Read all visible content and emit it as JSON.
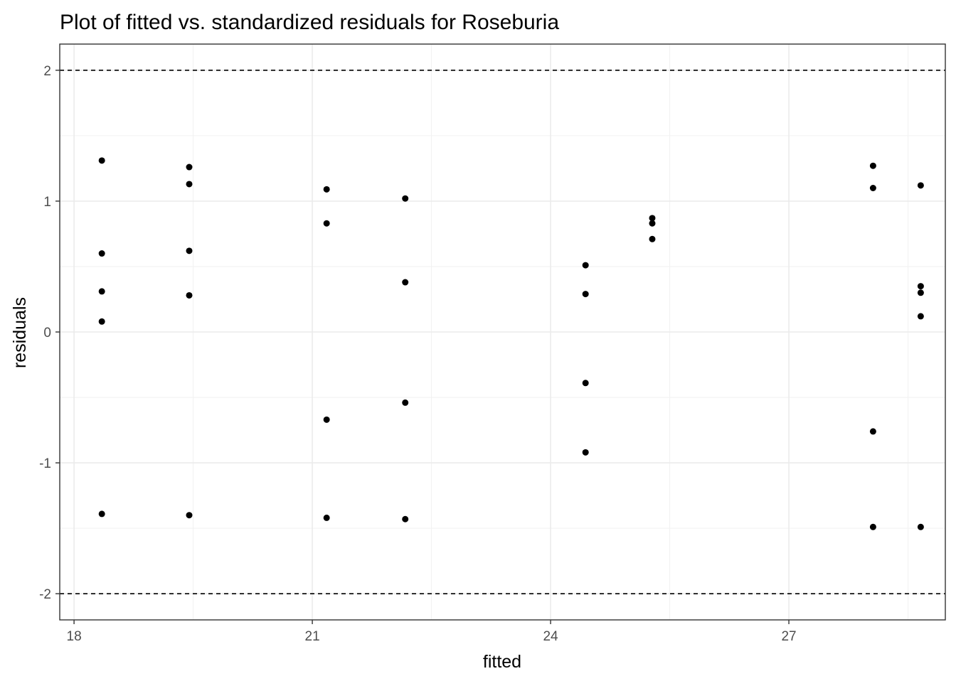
{
  "chart_data": {
    "type": "scatter",
    "title": "Plot of fitted vs. standardized residuals for Roseburia",
    "xlabel": "fitted",
    "ylabel": "residuals",
    "xlim": [
      17.82,
      28.97
    ],
    "ylim": [
      -2.2,
      2.2
    ],
    "x_ticks": [
      18,
      21,
      24,
      27
    ],
    "x_tick_labels": [
      "18",
      "21",
      "24",
      "27"
    ],
    "y_ticks": [
      -2,
      -1,
      0,
      1,
      2
    ],
    "y_tick_labels": [
      "-2",
      "-1",
      "0",
      "1",
      "2"
    ],
    "reference_lines_y": [
      -2,
      2
    ],
    "reference_line_style": "dashed",
    "grid": true,
    "theme": "black-and-white",
    "point_color": "#000000",
    "points": [
      {
        "x": 18.35,
        "y": 1.31
      },
      {
        "x": 18.35,
        "y": 0.6
      },
      {
        "x": 18.35,
        "y": 0.31
      },
      {
        "x": 18.35,
        "y": 0.08
      },
      {
        "x": 18.35,
        "y": -1.39
      },
      {
        "x": 19.45,
        "y": 1.26
      },
      {
        "x": 19.45,
        "y": 1.13
      },
      {
        "x": 19.45,
        "y": 0.62
      },
      {
        "x": 19.45,
        "y": 0.28
      },
      {
        "x": 19.45,
        "y": -1.4
      },
      {
        "x": 21.18,
        "y": 1.09
      },
      {
        "x": 21.18,
        "y": 0.83
      },
      {
        "x": 21.18,
        "y": -0.67
      },
      {
        "x": 21.18,
        "y": -1.42
      },
      {
        "x": 22.17,
        "y": 1.02
      },
      {
        "x": 22.17,
        "y": 0.38
      },
      {
        "x": 22.17,
        "y": -0.54
      },
      {
        "x": 22.17,
        "y": -1.43
      },
      {
        "x": 24.44,
        "y": 0.51
      },
      {
        "x": 24.44,
        "y": 0.29
      },
      {
        "x": 24.44,
        "y": -0.39
      },
      {
        "x": 24.44,
        "y": -0.92
      },
      {
        "x": 25.28,
        "y": 0.87
      },
      {
        "x": 25.28,
        "y": 0.83
      },
      {
        "x": 25.28,
        "y": 0.71
      },
      {
        "x": 28.06,
        "y": 1.27
      },
      {
        "x": 28.06,
        "y": 1.1
      },
      {
        "x": 28.06,
        "y": -0.76
      },
      {
        "x": 28.06,
        "y": -1.49
      },
      {
        "x": 28.66,
        "y": 1.12
      },
      {
        "x": 28.66,
        "y": 0.35
      },
      {
        "x": 28.66,
        "y": 0.3
      },
      {
        "x": 28.66,
        "y": 0.12
      },
      {
        "x": 28.66,
        "y": -1.49
      }
    ]
  }
}
